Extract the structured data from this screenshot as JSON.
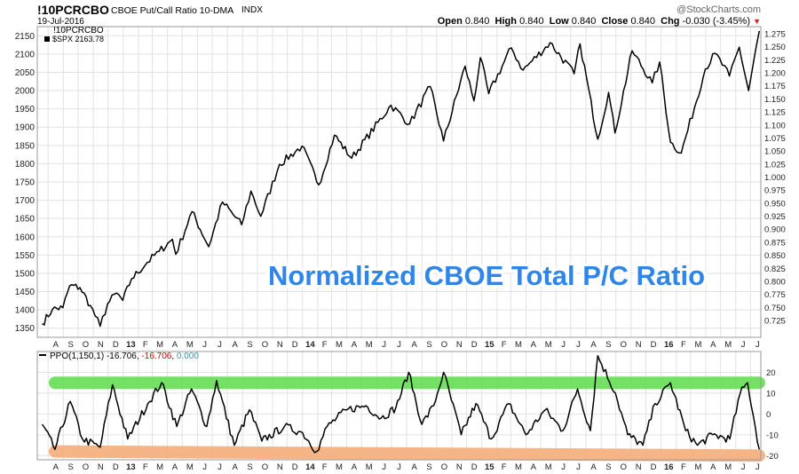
{
  "header": {
    "symbol": "!10PCRCBO",
    "description": "CBOE Put/Call Ratio 10-DMA",
    "exchange": "INDX",
    "date": "19-Jul-2016",
    "watermark": "@StockCharts.com",
    "ohlc": {
      "open_label": "Open",
      "open": "0.840",
      "high_label": "High",
      "high": "0.840",
      "low_label": "Low",
      "low": "0.840",
      "close_label": "Close",
      "close": "0.840",
      "chg_label": "Chg",
      "chg": "-0.030 (-3.45%)",
      "chg_icon": "down-triangle-icon"
    }
  },
  "chart_data": [
    {
      "type": "line",
      "series": [
        {
          "name": "$SPX 2163.78",
          "color": "#000000",
          "points": [
            [
              "2012-07-20",
              1362
            ],
            [
              "2012-08-10",
              1402
            ],
            [
              "2012-08-31",
              1406
            ],
            [
              "2012-09-14",
              1466
            ],
            [
              "2012-10-05",
              1461
            ],
            [
              "2012-10-26",
              1412
            ],
            [
              "2012-11-15",
              1355
            ],
            [
              "2012-11-30",
              1416
            ],
            [
              "2012-12-18",
              1446
            ],
            [
              "2012-12-31",
              1426
            ],
            [
              "2013-01-18",
              1485
            ],
            [
              "2013-02-19",
              1530
            ],
            [
              "2013-03-15",
              1560
            ],
            [
              "2013-04-11",
              1593
            ],
            [
              "2013-04-18",
              1552
            ],
            [
              "2013-05-21",
              1669
            ],
            [
              "2013-06-24",
              1573
            ],
            [
              "2013-07-22",
              1695
            ],
            [
              "2013-08-30",
              1633
            ],
            [
              "2013-09-18",
              1725
            ],
            [
              "2013-10-08",
              1656
            ],
            [
              "2013-11-15",
              1798
            ],
            [
              "2013-12-31",
              1848
            ],
            [
              "2014-02-03",
              1742
            ],
            [
              "2014-03-07",
              1878
            ],
            [
              "2014-04-11",
              1815
            ],
            [
              "2014-06-30",
              1960
            ],
            [
              "2014-08-07",
              1909
            ],
            [
              "2014-09-18",
              2011
            ],
            [
              "2014-10-15",
              1862
            ],
            [
              "2014-11-28",
              2067
            ],
            [
              "2014-12-16",
              1972
            ],
            [
              "2014-12-29",
              2090
            ],
            [
              "2015-01-15",
              1992
            ],
            [
              "2015-03-02",
              2117
            ],
            [
              "2015-03-26",
              2056
            ],
            [
              "2015-05-20",
              2131
            ],
            [
              "2015-07-08",
              2046
            ],
            [
              "2015-07-20",
              2128
            ],
            [
              "2015-08-25",
              1867
            ],
            [
              "2015-09-16",
              1995
            ],
            [
              "2015-09-29",
              1884
            ],
            [
              "2015-11-03",
              2109
            ],
            [
              "2015-12-14",
              2021
            ],
            [
              "2015-12-29",
              2078
            ],
            [
              "2016-01-20",
              1859
            ],
            [
              "2016-02-11",
              1829
            ],
            [
              "2016-03-31",
              2059
            ],
            [
              "2016-04-20",
              2102
            ],
            [
              "2016-05-19",
              2040
            ],
            [
              "2016-06-08",
              2119
            ],
            [
              "2016-06-27",
              2000
            ],
            [
              "2016-07-19",
              2163
            ]
          ]
        }
      ],
      "title": "Normalized CBOE Total P/C Ratio",
      "legend": [
        "!10PCRCBO",
        "$SPX 2163.78"
      ],
      "left_ticks": [
        1350,
        1400,
        1450,
        1500,
        1550,
        1600,
        1650,
        1700,
        1750,
        1800,
        1850,
        1900,
        1950,
        2000,
        2050,
        2100,
        2150
      ],
      "right_ticks": [
        "0.725",
        "0.750",
        "0.775",
        "0.800",
        "0.825",
        "0.850",
        "0.875",
        "0.900",
        "0.925",
        "0.950",
        "0.975",
        "1.000",
        "1.025",
        "1.050",
        "1.075",
        "1.100",
        "1.125",
        "1.150",
        "1.175",
        "1.200",
        "1.225",
        "1.250",
        "1.275"
      ],
      "ylim": [
        1325,
        2175
      ],
      "xlim": [
        "2012-07-10",
        "2016-07-22"
      ],
      "grid": true
    },
    {
      "type": "line",
      "series": [
        {
          "name": "PPO(1,150,1)",
          "values_text": [
            "-16.706",
            "-16.706",
            "0.000"
          ],
          "values_colors": [
            "#000000",
            "#cc0000",
            "#3399aa"
          ],
          "color": "#000000",
          "points": [
            [
              "2012-07-20",
              -5
            ],
            [
              "2012-08-15",
              -17
            ],
            [
              "2012-09-15",
              6
            ],
            [
              "2012-10-10",
              -12
            ],
            [
              "2012-11-15",
              -16
            ],
            [
              "2012-12-10",
              14
            ],
            [
              "2013-01-10",
              -12
            ],
            [
              "2013-02-20",
              5
            ],
            [
              "2013-03-20",
              15
            ],
            [
              "2013-04-20",
              -6
            ],
            [
              "2013-05-20",
              12
            ],
            [
              "2013-06-20",
              -6
            ],
            [
              "2013-07-10",
              16
            ],
            [
              "2013-08-15",
              -15
            ],
            [
              "2013-09-15",
              2
            ],
            [
              "2013-10-10",
              -13
            ],
            [
              "2013-11-25",
              -6
            ],
            [
              "2014-01-01",
              -9
            ],
            [
              "2014-01-30",
              -18
            ],
            [
              "2014-02-20",
              -6
            ],
            [
              "2014-04-01",
              2
            ],
            [
              "2014-05-10",
              4
            ],
            [
              "2014-06-10",
              -2
            ],
            [
              "2014-07-10",
              3
            ],
            [
              "2014-08-05",
              20
            ],
            [
              "2014-09-01",
              -5
            ],
            [
              "2014-09-25",
              4
            ],
            [
              "2014-10-15",
              20
            ],
            [
              "2014-11-20",
              -10
            ],
            [
              "2014-12-20",
              5
            ],
            [
              "2015-01-20",
              -12
            ],
            [
              "2015-02-25",
              5
            ],
            [
              "2015-04-01",
              -10
            ],
            [
              "2015-05-10",
              2
            ],
            [
              "2015-06-15",
              -8
            ],
            [
              "2015-07-15",
              12
            ],
            [
              "2015-08-10",
              -8
            ],
            [
              "2015-08-25",
              28
            ],
            [
              "2015-09-30",
              10
            ],
            [
              "2015-10-25",
              -10
            ],
            [
              "2015-11-25",
              -15
            ],
            [
              "2015-12-20",
              5
            ],
            [
              "2016-01-20",
              15
            ],
            [
              "2016-02-20",
              -8
            ],
            [
              "2016-03-15",
              -15
            ],
            [
              "2016-04-15",
              -10
            ],
            [
              "2016-05-20",
              -12
            ],
            [
              "2016-06-10",
              10
            ],
            [
              "2016-06-25",
              15
            ],
            [
              "2016-07-19",
              -17
            ]
          ]
        }
      ],
      "right_ticks": [
        -20,
        -10,
        0,
        10,
        20
      ],
      "ylim": [
        -22,
        30
      ],
      "grid": true,
      "bands": [
        {
          "name": "upper-band",
          "color": "#66dd55",
          "y_start": 15,
          "y_end": 15
        },
        {
          "name": "lower-band",
          "color": "#f6ae7a",
          "y_start": -18,
          "y_end": -20
        }
      ]
    }
  ],
  "x_axis": {
    "labels": [
      "A",
      "S",
      "O",
      "N",
      "D",
      "13",
      "F",
      "M",
      "A",
      "M",
      "J",
      "J",
      "A",
      "S",
      "O",
      "N",
      "D",
      "14",
      "F",
      "M",
      "A",
      "M",
      "J",
      "J",
      "A",
      "S",
      "O",
      "N",
      "D",
      "15",
      "F",
      "M",
      "A",
      "M",
      "J",
      "J",
      "A",
      "S",
      "O",
      "N",
      "D",
      "16",
      "F",
      "M",
      "A",
      "M",
      "J",
      "J"
    ],
    "label_dates": [
      "2012-08-01",
      "2012-09-01",
      "2012-10-01",
      "2012-11-01",
      "2012-12-01",
      "2013-01-01",
      "2013-02-01",
      "2013-03-01",
      "2013-04-01",
      "2013-05-01",
      "2013-06-01",
      "2013-07-01",
      "2013-08-01",
      "2013-09-01",
      "2013-10-01",
      "2013-11-01",
      "2013-12-01",
      "2014-01-01",
      "2014-02-01",
      "2014-03-01",
      "2014-04-01",
      "2014-05-01",
      "2014-06-01",
      "2014-07-01",
      "2014-08-01",
      "2014-09-01",
      "2014-10-01",
      "2014-11-01",
      "2014-12-01",
      "2015-01-01",
      "2015-02-01",
      "2015-03-01",
      "2015-04-01",
      "2015-05-01",
      "2015-06-01",
      "2015-07-01",
      "2015-08-01",
      "2015-09-01",
      "2015-10-01",
      "2015-11-01",
      "2015-12-01",
      "2016-01-01",
      "2016-02-01",
      "2016-03-01",
      "2016-04-01",
      "2016-05-01",
      "2016-06-01",
      "2016-07-01"
    ],
    "bold_labels": [
      "13",
      "14",
      "15",
      "16"
    ]
  }
}
